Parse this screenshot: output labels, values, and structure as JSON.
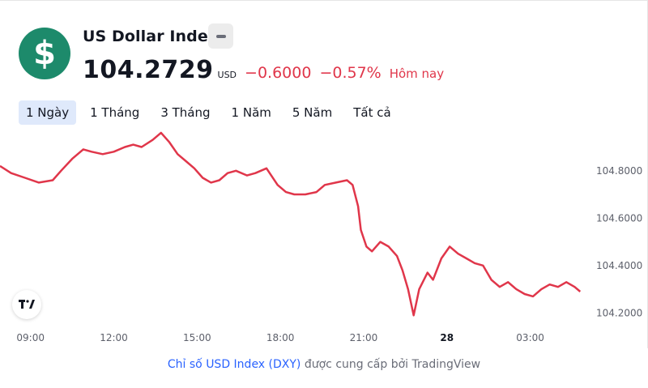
{
  "header": {
    "title": "US Dollar Index",
    "price": "104.2729",
    "currency": "USD",
    "change": "−0.6000",
    "change_percent": "−0.57%",
    "period_label": "Hôm nay",
    "logo_symbol": "$",
    "accent_color": "#1d8a6b",
    "negative_color": "#e0364a"
  },
  "tabs": [
    {
      "label": "1 Ngày",
      "active": true
    },
    {
      "label": "1 Tháng",
      "active": false
    },
    {
      "label": "3 Tháng",
      "active": false
    },
    {
      "label": "1 Năm",
      "active": false
    },
    {
      "label": "5 Năm",
      "active": false
    },
    {
      "label": "Tất cả",
      "active": false
    }
  ],
  "footer": {
    "link_text": "Chỉ số USD Index (DXY)",
    "rest_text": " được cung cấp bởi TradingView"
  },
  "chart_data": {
    "type": "line",
    "line_color": "#e0364a",
    "grid": false,
    "y_ticks": [
      "104.8000",
      "104.6000",
      "104.4000",
      "104.2000"
    ],
    "y_tick_values": [
      104.8,
      104.6,
      104.4,
      104.2
    ],
    "ylim": [
      104.15,
      104.97
    ],
    "x_ticks": [
      "09:00",
      "12:00",
      "15:00",
      "18:00",
      "21:00",
      "28",
      "03:00"
    ],
    "x_tick_values": [
      9,
      12,
      15,
      18,
      21,
      24,
      27
    ],
    "x_tick_bold": [
      false,
      false,
      false,
      false,
      false,
      true,
      false
    ],
    "xlim": [
      7.9,
      29.2
    ],
    "series": [
      {
        "x": [
          7.9,
          8.3,
          8.8,
          9.3,
          9.8,
          10.1,
          10.5,
          10.9,
          11.2,
          11.6,
          12.0,
          12.4,
          12.7,
          13.0,
          13.4,
          13.7,
          14.0,
          14.3,
          14.6,
          14.9,
          15.2,
          15.5,
          15.8,
          16.1,
          16.4,
          16.8,
          17.1,
          17.5,
          17.9,
          18.2,
          18.5,
          18.9,
          19.3,
          19.6,
          20.0,
          20.4,
          20.6,
          20.8,
          20.9,
          21.1,
          21.3,
          21.6,
          21.9,
          22.2,
          22.4,
          22.6,
          22.8,
          23.0,
          23.3,
          23.5,
          23.8,
          24.1,
          24.4,
          24.7,
          25.0,
          25.3,
          25.6,
          25.9,
          26.2,
          26.5,
          26.8,
          27.1,
          27.4,
          27.7,
          28.0,
          28.3,
          28.6,
          28.8
        ],
        "y": [
          104.82,
          104.79,
          104.77,
          104.75,
          104.76,
          104.8,
          104.85,
          104.89,
          104.88,
          104.87,
          104.88,
          104.9,
          104.91,
          104.9,
          104.93,
          104.96,
          104.92,
          104.87,
          104.84,
          104.81,
          104.77,
          104.75,
          104.76,
          104.79,
          104.8,
          104.78,
          104.79,
          104.81,
          104.74,
          104.71,
          104.7,
          104.7,
          104.71,
          104.74,
          104.75,
          104.76,
          104.74,
          104.65,
          104.55,
          104.48,
          104.46,
          104.5,
          104.48,
          104.44,
          104.38,
          104.3,
          104.19,
          104.3,
          104.37,
          104.34,
          104.43,
          104.48,
          104.45,
          104.43,
          104.41,
          104.4,
          104.34,
          104.31,
          104.33,
          104.3,
          104.28,
          104.27,
          104.3,
          104.32,
          104.31,
          104.33,
          104.31,
          104.29
        ]
      }
    ]
  }
}
